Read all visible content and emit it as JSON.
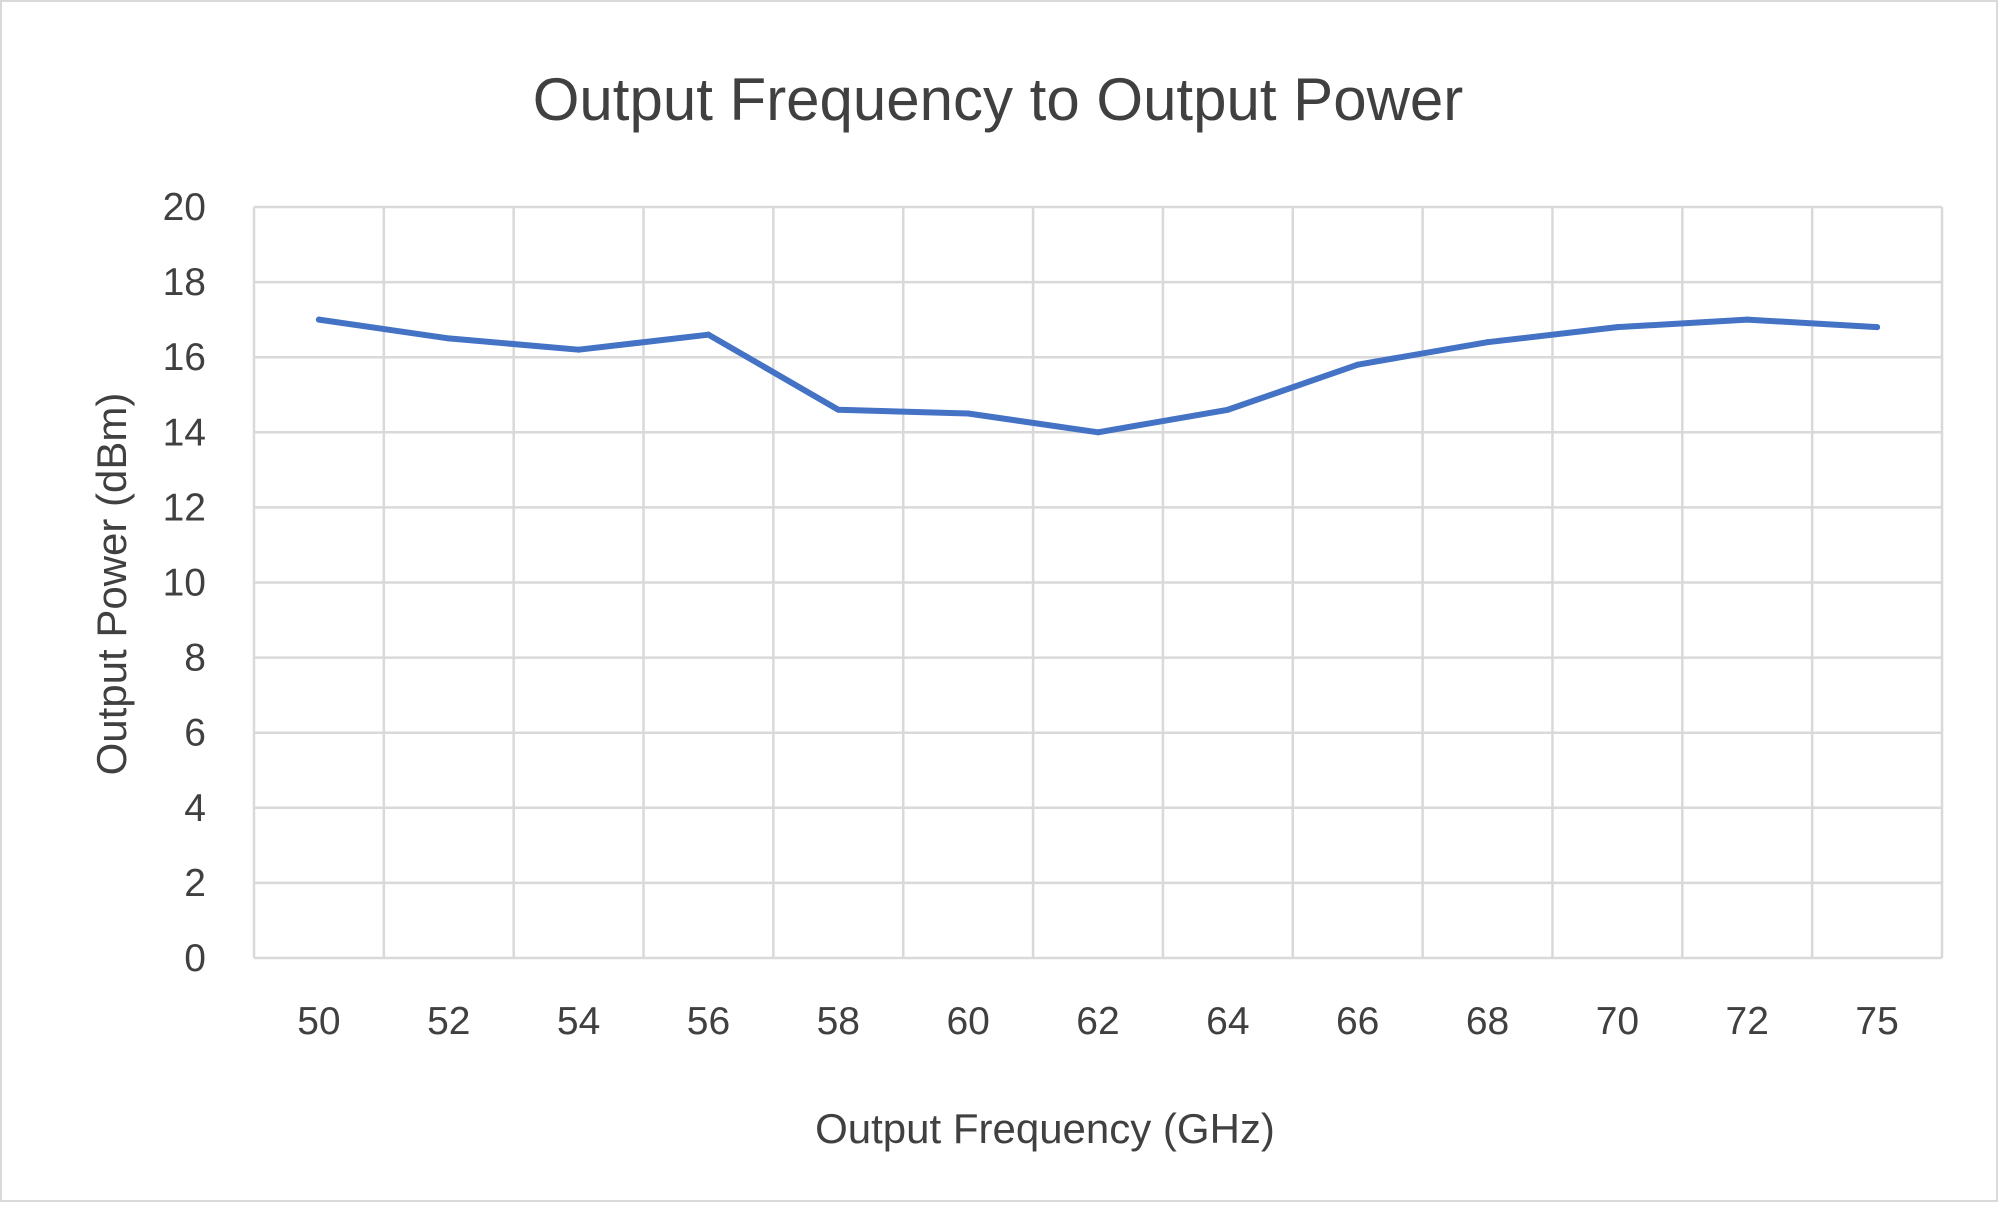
{
  "chart_data": {
    "type": "line",
    "title": "Output Frequency to Output Power",
    "xlabel": "Output Frequency (GHz)",
    "ylabel": "Output Power (dBm)",
    "categories": [
      "50",
      "52",
      "54",
      "56",
      "58",
      "60",
      "62",
      "64",
      "66",
      "68",
      "70",
      "72",
      "75"
    ],
    "series": [
      {
        "values": [
          17.0,
          16.5,
          16.2,
          16.6,
          14.6,
          14.5,
          14.0,
          14.6,
          15.8,
          16.4,
          16.8,
          17.0,
          16.8
        ]
      }
    ],
    "ylim": [
      0,
      20
    ],
    "yticks": [
      0,
      2,
      4,
      6,
      8,
      10,
      12,
      14,
      16,
      18,
      20
    ],
    "grid": true,
    "legend": "none",
    "colors": {
      "line": "#4472c4",
      "grid": "#d9d9d9",
      "text": "#404040"
    }
  }
}
